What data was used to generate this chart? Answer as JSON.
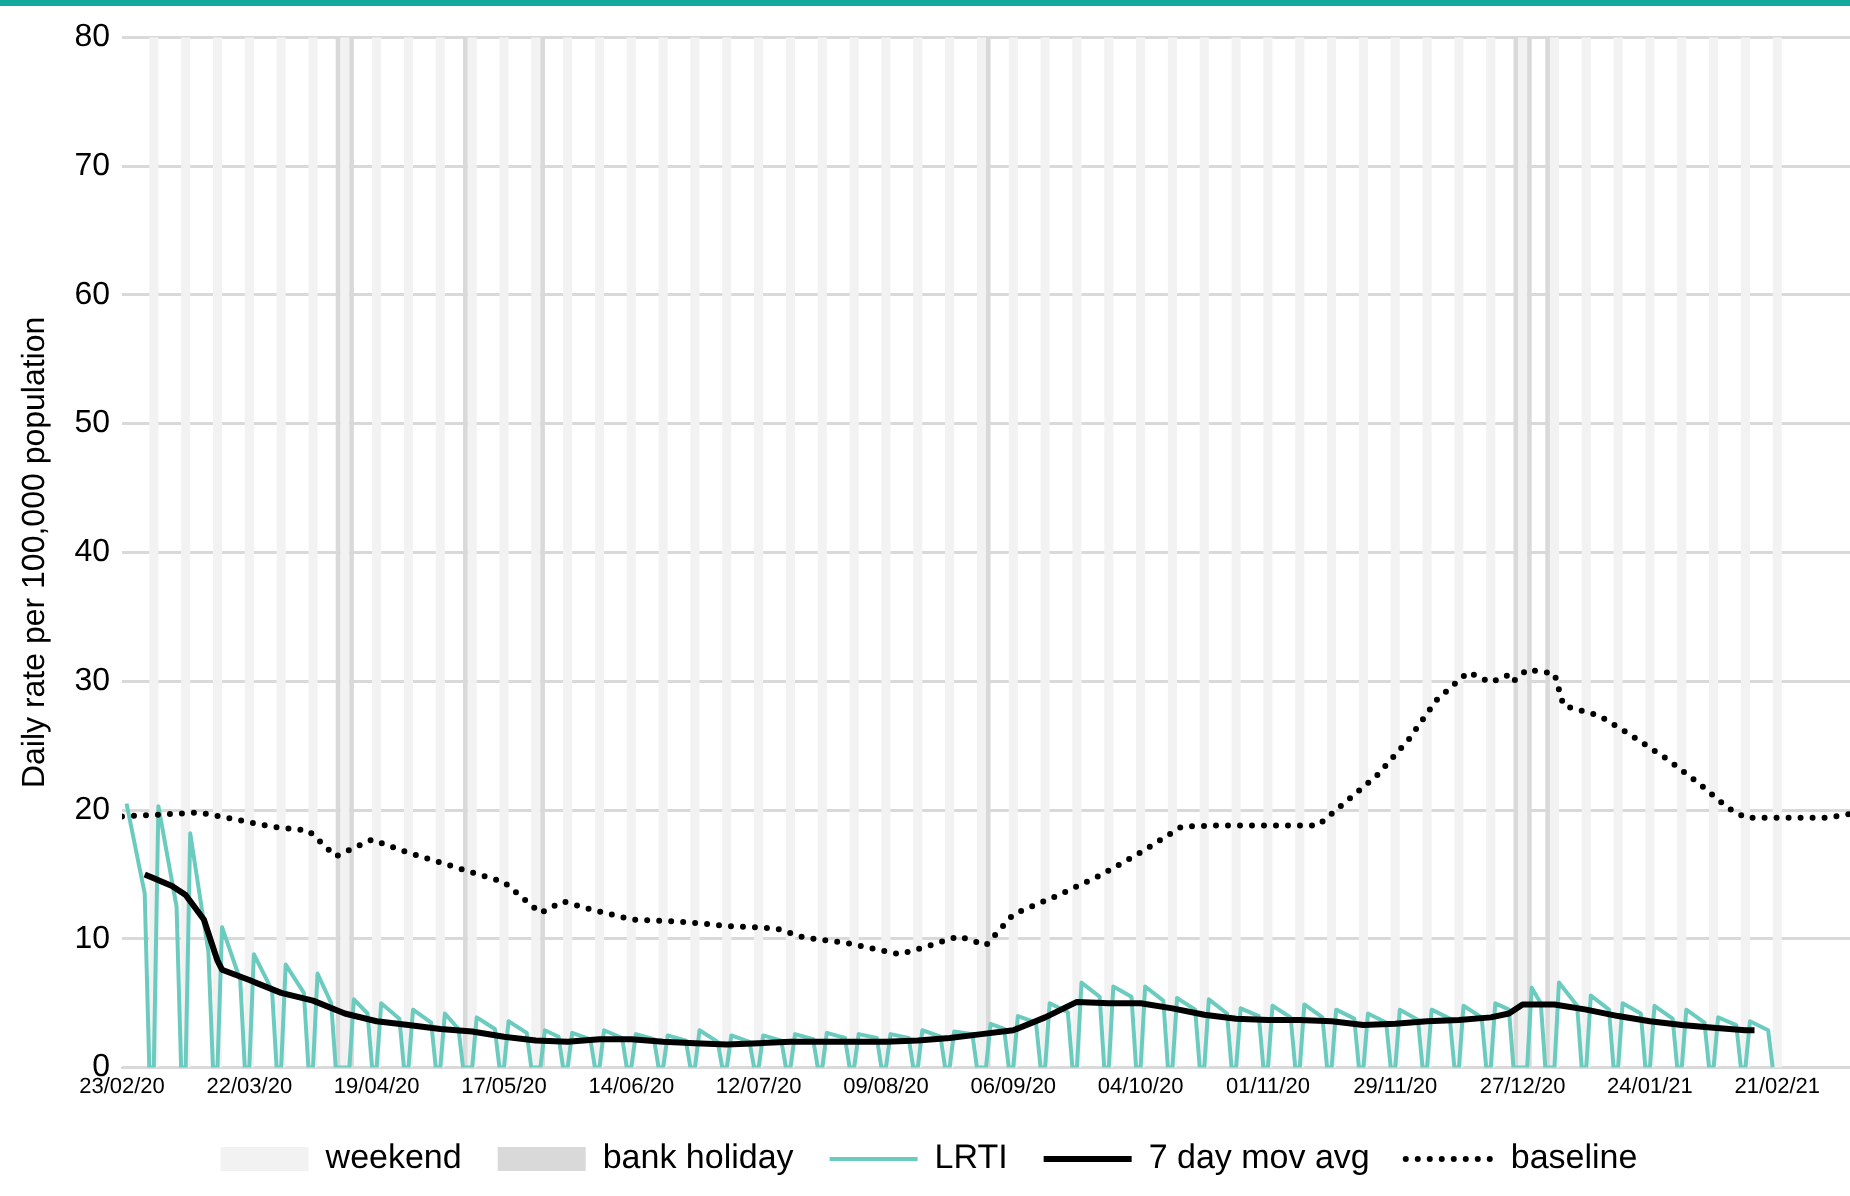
{
  "chart_data": {
    "type": "line",
    "ylabel": "Daily rate per 100,000 population",
    "xlim": [
      "2020-02-23",
      "2021-03-09"
    ],
    "xticks": [
      {
        "value": "2020-02-23",
        "label": "23/02/20"
      },
      {
        "value": "2020-03-22",
        "label": "22/03/20"
      },
      {
        "value": "2020-04-19",
        "label": "19/04/20"
      },
      {
        "value": "2020-05-17",
        "label": "17/05/20"
      },
      {
        "value": "2020-06-14",
        "label": "14/06/20"
      },
      {
        "value": "2020-07-12",
        "label": "12/07/20"
      },
      {
        "value": "2020-08-09",
        "label": "09/08/20"
      },
      {
        "value": "2020-09-06",
        "label": "06/09/20"
      },
      {
        "value": "2020-10-04",
        "label": "04/10/20"
      },
      {
        "value": "2020-11-01",
        "label": "01/11/20"
      },
      {
        "value": "2020-11-29",
        "label": "29/11/20"
      },
      {
        "value": "2020-12-27",
        "label": "27/12/20"
      },
      {
        "value": "2021-01-24",
        "label": "24/01/21"
      },
      {
        "value": "2021-02-21",
        "label": "21/02/21"
      }
    ],
    "ylim": [
      0,
      80
    ],
    "yticks": [
      0,
      10,
      20,
      30,
      40,
      50,
      60,
      70,
      80
    ],
    "grid": "y",
    "legend": "bottom",
    "marker": "none",
    "series": [
      {
        "name": "LRTI",
        "color": "#6ccbbf",
        "line_style": "solid",
        "x": [
          "2020-02-24",
          "2020-02-28",
          "2020-02-29",
          "2020-03-01",
          "2020-03-02",
          "2020-03-06",
          "2020-03-07",
          "2020-03-08",
          "2020-03-09",
          "2020-03-13",
          "2020-03-14",
          "2020-03-15",
          "2020-03-16",
          "2020-03-20",
          "2020-03-21",
          "2020-03-22",
          "2020-03-23",
          "2020-03-27",
          "2020-03-28",
          "2020-03-29",
          "2020-03-30",
          "2020-04-03",
          "2020-04-04",
          "2020-04-05",
          "2020-04-06",
          "2020-04-09",
          "2020-04-10",
          "2020-04-13",
          "2020-04-14",
          "2020-04-17",
          "2020-04-18",
          "2020-04-19",
          "2020-04-20",
          "2020-04-24",
          "2020-04-25",
          "2020-04-26",
          "2020-04-27",
          "2020-05-01",
          "2020-05-02",
          "2020-05-03",
          "2020-05-04",
          "2020-05-07",
          "2020-05-08",
          "2020-05-10",
          "2020-05-11",
          "2020-05-15",
          "2020-05-16",
          "2020-05-17",
          "2020-05-18",
          "2020-05-22",
          "2020-05-23",
          "2020-05-25",
          "2020-05-26",
          "2020-05-29",
          "2020-05-30",
          "2020-05-31",
          "2020-06-01",
          "2020-06-05",
          "2020-06-06",
          "2020-06-07",
          "2020-06-08",
          "2020-06-12",
          "2020-06-13",
          "2020-06-14",
          "2020-06-15",
          "2020-06-19",
          "2020-06-20",
          "2020-06-21",
          "2020-06-22",
          "2020-06-26",
          "2020-06-27",
          "2020-06-28",
          "2020-06-29",
          "2020-07-03",
          "2020-07-04",
          "2020-07-05",
          "2020-07-06",
          "2020-07-10",
          "2020-07-11",
          "2020-07-12",
          "2020-07-13",
          "2020-07-17",
          "2020-07-18",
          "2020-07-19",
          "2020-07-20",
          "2020-07-24",
          "2020-07-25",
          "2020-07-26",
          "2020-07-27",
          "2020-07-31",
          "2020-08-01",
          "2020-08-02",
          "2020-08-03",
          "2020-08-07",
          "2020-08-08",
          "2020-08-09",
          "2020-08-10",
          "2020-08-14",
          "2020-08-15",
          "2020-08-16",
          "2020-08-17",
          "2020-08-21",
          "2020-08-22",
          "2020-08-23",
          "2020-08-24",
          "2020-08-28",
          "2020-08-29",
          "2020-08-31",
          "2020-09-01",
          "2020-09-04",
          "2020-09-05",
          "2020-09-06",
          "2020-09-07",
          "2020-09-11",
          "2020-09-12",
          "2020-09-13",
          "2020-09-14",
          "2020-09-18",
          "2020-09-19",
          "2020-09-20",
          "2020-09-21",
          "2020-09-25",
          "2020-09-26",
          "2020-09-27",
          "2020-09-28",
          "2020-10-02",
          "2020-10-03",
          "2020-10-04",
          "2020-10-05",
          "2020-10-09",
          "2020-10-10",
          "2020-10-11",
          "2020-10-12",
          "2020-10-16",
          "2020-10-17",
          "2020-10-18",
          "2020-10-19",
          "2020-10-23",
          "2020-10-24",
          "2020-10-25",
          "2020-10-26",
          "2020-10-30",
          "2020-10-31",
          "2020-11-01",
          "2020-11-02",
          "2020-11-06",
          "2020-11-07",
          "2020-11-08",
          "2020-11-09",
          "2020-11-13",
          "2020-11-14",
          "2020-11-15",
          "2020-11-16",
          "2020-11-20",
          "2020-11-21",
          "2020-11-22",
          "2020-11-23",
          "2020-11-27",
          "2020-11-28",
          "2020-11-29",
          "2020-11-30",
          "2020-12-04",
          "2020-12-05",
          "2020-12-06",
          "2020-12-07",
          "2020-12-11",
          "2020-12-12",
          "2020-12-13",
          "2020-12-14",
          "2020-12-18",
          "2020-12-19",
          "2020-12-20",
          "2020-12-21",
          "2020-12-24",
          "2020-12-25",
          "2020-12-28",
          "2020-12-29",
          "2020-12-31",
          "2021-01-01",
          "2021-01-03",
          "2021-01-04",
          "2021-01-08",
          "2021-01-09",
          "2021-01-10",
          "2021-01-11",
          "2021-01-15",
          "2021-01-16",
          "2021-01-17",
          "2021-01-18",
          "2021-01-22",
          "2021-01-23",
          "2021-01-24",
          "2021-01-25",
          "2021-01-29",
          "2021-01-30",
          "2021-01-31",
          "2021-02-01",
          "2021-02-05",
          "2021-02-06",
          "2021-02-07",
          "2021-02-08",
          "2021-02-12",
          "2021-02-13",
          "2021-02-14",
          "2021-02-15",
          "2021-02-19",
          "2021-02-20"
        ],
        "values": [
          20.5,
          13.5,
          0,
          0,
          20.3,
          12.5,
          0,
          0,
          18.2,
          9,
          0,
          0,
          10.9,
          6.8,
          0,
          0,
          8.8,
          6.0,
          0,
          0,
          8.0,
          5.8,
          0,
          0,
          7.3,
          5.0,
          0,
          0,
          5.3,
          4.2,
          0,
          0,
          5.0,
          3.8,
          0,
          0,
          4.5,
          3.5,
          0,
          0,
          4.2,
          3.0,
          0,
          0,
          3.9,
          3.0,
          0,
          0,
          3.6,
          2.7,
          0,
          0,
          2.9,
          2.4,
          0,
          0,
          2.7,
          2.2,
          0,
          0,
          2.9,
          2.3,
          0,
          0,
          2.6,
          2.2,
          0,
          0,
          2.5,
          2.1,
          0,
          0,
          2.9,
          2.0,
          0,
          0,
          2.5,
          2.0,
          0,
          0,
          2.5,
          2.1,
          0,
          0,
          2.6,
          2.2,
          0,
          0,
          2.7,
          2.3,
          0,
          0,
          2.6,
          2.3,
          0,
          0,
          2.6,
          2.3,
          0,
          0,
          2.9,
          2.4,
          0,
          0,
          2.8,
          2.6,
          0,
          0,
          3.4,
          3.0,
          0,
          0,
          4.0,
          3.5,
          0,
          0,
          5.0,
          4.3,
          0,
          0,
          6.6,
          5.5,
          0,
          0,
          6.3,
          5.5,
          0,
          0,
          6.3,
          5.2,
          0,
          0,
          5.4,
          4.5,
          0,
          0,
          5.3,
          4.2,
          0,
          0,
          4.6,
          4.0,
          0,
          0,
          4.8,
          3.9,
          0,
          0,
          4.9,
          3.9,
          0,
          0,
          4.5,
          3.8,
          0,
          0,
          4.2,
          3.5,
          0,
          0,
          4.5,
          3.7,
          0,
          0,
          4.5,
          3.8,
          0,
          0,
          4.8,
          3.9,
          0,
          0,
          5.0,
          4.5,
          0,
          0,
          6.2,
          5.0,
          0,
          0,
          6.6,
          4.8,
          0,
          0,
          5.6,
          4.5,
          0,
          0,
          5.0,
          4.2,
          0,
          0,
          4.8,
          3.8,
          0,
          0,
          4.5,
          3.5,
          0,
          0,
          3.9,
          3.3,
          0,
          0,
          3.6,
          2.9,
          0
        ]
      },
      {
        "name": "7 day mov avg",
        "color": "#000000",
        "line_style": "solid",
        "x": [
          "2020-02-28",
          "2020-03-01",
          "2020-03-05",
          "2020-03-08",
          "2020-03-12",
          "2020-03-15",
          "2020-03-16",
          "2020-03-22",
          "2020-03-29",
          "2020-04-05",
          "2020-04-12",
          "2020-04-19",
          "2020-04-26",
          "2020-05-03",
          "2020-05-10",
          "2020-05-17",
          "2020-05-24",
          "2020-05-31",
          "2020-06-07",
          "2020-06-14",
          "2020-06-21",
          "2020-06-28",
          "2020-07-05",
          "2020-07-12",
          "2020-07-19",
          "2020-07-26",
          "2020-08-02",
          "2020-08-09",
          "2020-08-16",
          "2020-08-23",
          "2020-08-30",
          "2020-09-06",
          "2020-09-13",
          "2020-09-20",
          "2020-09-27",
          "2020-10-04",
          "2020-10-11",
          "2020-10-18",
          "2020-10-25",
          "2020-11-01",
          "2020-11-08",
          "2020-11-15",
          "2020-11-22",
          "2020-11-29",
          "2020-12-06",
          "2020-12-13",
          "2020-12-20",
          "2020-12-24",
          "2020-12-27",
          "2021-01-03",
          "2021-01-10",
          "2021-01-17",
          "2021-01-24",
          "2021-01-31",
          "2021-02-07",
          "2021-02-14",
          "2021-02-16"
        ],
        "values": [
          15.0,
          14.7,
          14.1,
          13.4,
          11.5,
          8.3,
          7.6,
          6.8,
          5.8,
          5.2,
          4.2,
          3.6,
          3.3,
          3.0,
          2.8,
          2.4,
          2.1,
          2.0,
          2.2,
          2.2,
          2.0,
          1.9,
          1.8,
          1.9,
          2.0,
          2.0,
          2.0,
          2.0,
          2.1,
          2.3,
          2.6,
          2.9,
          3.9,
          5.1,
          5.0,
          5.0,
          4.6,
          4.1,
          3.8,
          3.7,
          3.7,
          3.6,
          3.3,
          3.4,
          3.6,
          3.7,
          3.9,
          4.2,
          4.9,
          4.9,
          4.5,
          4.0,
          3.6,
          3.3,
          3.1,
          2.9,
          2.9
        ]
      },
      {
        "name": "baseline",
        "color": "#000000",
        "line_style": "dotted",
        "x": [
          "2020-02-23",
          "2020-03-11",
          "2020-03-17",
          "2020-03-27",
          "2020-04-04",
          "2020-04-10",
          "2020-04-18",
          "2020-04-25",
          "2020-05-05",
          "2020-05-17",
          "2020-05-25",
          "2020-05-30",
          "2020-06-05",
          "2020-06-14",
          "2020-06-26",
          "2020-07-05",
          "2020-07-16",
          "2020-07-22",
          "2020-07-31",
          "2020-08-12",
          "2020-08-18",
          "2020-08-25",
          "2020-08-31",
          "2020-09-06",
          "2020-09-16",
          "2020-09-25",
          "2020-10-04",
          "2020-10-13",
          "2020-10-21",
          "2020-11-12",
          "2020-11-16",
          "2020-11-25",
          "2020-12-02",
          "2020-12-08",
          "2020-12-15",
          "2020-12-20",
          "2020-12-24",
          "2020-12-25",
          "2020-12-28",
          "2021-01-03",
          "2021-01-05",
          "2021-01-13",
          "2021-01-19",
          "2021-01-28",
          "2021-02-04",
          "2021-02-10",
          "2021-02-14",
          "2021-03-04",
          "2021-03-09"
        ],
        "values": [
          19.5,
          19.8,
          19.4,
          18.7,
          18.4,
          16.4,
          17.7,
          16.8,
          15.7,
          14.4,
          12.0,
          12.9,
          12.3,
          11.5,
          11.3,
          11.0,
          10.8,
          10.1,
          9.7,
          8.8,
          9.4,
          10.2,
          9.5,
          11.9,
          13.4,
          14.9,
          16.7,
          18.7,
          18.8,
          18.8,
          20.0,
          22.7,
          25.5,
          28.5,
          30.7,
          29.9,
          30.5,
          30.0,
          30.9,
          30.6,
          28.1,
          27.3,
          26.0,
          23.9,
          22.0,
          20.2,
          19.4,
          19.4,
          19.7
        ]
      }
    ],
    "bands": [
      {
        "axis": "x",
        "from": "2020-02-29",
        "to": "2020-03-02",
        "label": "weekend",
        "color": "#f2f2f2"
      },
      {
        "axis": "x",
        "from": "2020-03-07",
        "to": "2020-03-09",
        "color": "#f2f2f2"
      },
      {
        "axis": "x",
        "from": "2020-03-14",
        "to": "2020-03-16",
        "color": "#f2f2f2"
      },
      {
        "axis": "x",
        "from": "2020-03-21",
        "to": "2020-03-23",
        "color": "#f2f2f2"
      },
      {
        "axis": "x",
        "from": "2020-03-28",
        "to": "2020-03-30",
        "color": "#f2f2f2"
      },
      {
        "axis": "x",
        "from": "2020-04-04",
        "to": "2020-04-06",
        "color": "#f2f2f2"
      },
      {
        "axis": "x",
        "from": "2020-04-11",
        "to": "2020-04-13",
        "color": "#f2f2f2"
      },
      {
        "axis": "x",
        "from": "2020-04-18",
        "to": "2020-04-20",
        "color": "#f2f2f2"
      },
      {
        "axis": "x",
        "from": "2020-04-25",
        "to": "2020-04-27",
        "color": "#f2f2f2"
      },
      {
        "axis": "x",
        "from": "2020-05-02",
        "to": "2020-05-04",
        "color": "#f2f2f2"
      },
      {
        "axis": "x",
        "from": "2020-05-09",
        "to": "2020-05-11",
        "color": "#f2f2f2"
      },
      {
        "axis": "x",
        "from": "2020-05-16",
        "to": "2020-05-18",
        "color": "#f2f2f2"
      },
      {
        "axis": "x",
        "from": "2020-05-23",
        "to": "2020-05-25",
        "color": "#f2f2f2"
      },
      {
        "axis": "x",
        "from": "2020-05-30",
        "to": "2020-06-01",
        "color": "#f2f2f2"
      },
      {
        "axis": "x",
        "from": "2020-06-06",
        "to": "2020-06-08",
        "color": "#f2f2f2"
      },
      {
        "axis": "x",
        "from": "2020-06-13",
        "to": "2020-06-15",
        "color": "#f2f2f2"
      },
      {
        "axis": "x",
        "from": "2020-06-20",
        "to": "2020-06-22",
        "color": "#f2f2f2"
      },
      {
        "axis": "x",
        "from": "2020-06-27",
        "to": "2020-06-29",
        "color": "#f2f2f2"
      },
      {
        "axis": "x",
        "from": "2020-07-04",
        "to": "2020-07-06",
        "color": "#f2f2f2"
      },
      {
        "axis": "x",
        "from": "2020-07-11",
        "to": "2020-07-13",
        "color": "#f2f2f2"
      },
      {
        "axis": "x",
        "from": "2020-07-18",
        "to": "2020-07-20",
        "color": "#f2f2f2"
      },
      {
        "axis": "x",
        "from": "2020-07-25",
        "to": "2020-07-27",
        "color": "#f2f2f2"
      },
      {
        "axis": "x",
        "from": "2020-08-01",
        "to": "2020-08-03",
        "color": "#f2f2f2"
      },
      {
        "axis": "x",
        "from": "2020-08-08",
        "to": "2020-08-10",
        "color": "#f2f2f2"
      },
      {
        "axis": "x",
        "from": "2020-08-15",
        "to": "2020-08-17",
        "color": "#f2f2f2"
      },
      {
        "axis": "x",
        "from": "2020-08-22",
        "to": "2020-08-24",
        "color": "#f2f2f2"
      },
      {
        "axis": "x",
        "from": "2020-08-29",
        "to": "2020-08-31",
        "color": "#f2f2f2"
      },
      {
        "axis": "x",
        "from": "2020-09-05",
        "to": "2020-09-07",
        "color": "#f2f2f2"
      },
      {
        "axis": "x",
        "from": "2020-09-12",
        "to": "2020-09-14",
        "color": "#f2f2f2"
      },
      {
        "axis": "x",
        "from": "2020-09-19",
        "to": "2020-09-21",
        "color": "#f2f2f2"
      },
      {
        "axis": "x",
        "from": "2020-09-26",
        "to": "2020-09-28",
        "color": "#f2f2f2"
      },
      {
        "axis": "x",
        "from": "2020-10-03",
        "to": "2020-10-05",
        "color": "#f2f2f2"
      },
      {
        "axis": "x",
        "from": "2020-10-10",
        "to": "2020-10-12",
        "color": "#f2f2f2"
      },
      {
        "axis": "x",
        "from": "2020-10-17",
        "to": "2020-10-19",
        "color": "#f2f2f2"
      },
      {
        "axis": "x",
        "from": "2020-10-24",
        "to": "2020-10-26",
        "color": "#f2f2f2"
      },
      {
        "axis": "x",
        "from": "2020-10-31",
        "to": "2020-11-02",
        "color": "#f2f2f2"
      },
      {
        "axis": "x",
        "from": "2020-11-07",
        "to": "2020-11-09",
        "color": "#f2f2f2"
      },
      {
        "axis": "x",
        "from": "2020-11-14",
        "to": "2020-11-16",
        "color": "#f2f2f2"
      },
      {
        "axis": "x",
        "from": "2020-11-21",
        "to": "2020-11-23",
        "color": "#f2f2f2"
      },
      {
        "axis": "x",
        "from": "2020-11-28",
        "to": "2020-11-30",
        "color": "#f2f2f2"
      },
      {
        "axis": "x",
        "from": "2020-12-05",
        "to": "2020-12-07",
        "color": "#f2f2f2"
      },
      {
        "axis": "x",
        "from": "2020-12-12",
        "to": "2020-12-14",
        "color": "#f2f2f2"
      },
      {
        "axis": "x",
        "from": "2020-12-19",
        "to": "2020-12-21",
        "color": "#f2f2f2"
      },
      {
        "axis": "x",
        "from": "2020-12-26",
        "to": "2020-12-28",
        "color": "#f2f2f2"
      },
      {
        "axis": "x",
        "from": "2021-01-02",
        "to": "2021-01-04",
        "color": "#f2f2f2"
      },
      {
        "axis": "x",
        "from": "2021-01-09",
        "to": "2021-01-11",
        "color": "#f2f2f2"
      },
      {
        "axis": "x",
        "from": "2021-01-16",
        "to": "2021-01-18",
        "color": "#f2f2f2"
      },
      {
        "axis": "x",
        "from": "2021-01-23",
        "to": "2021-01-25",
        "color": "#f2f2f2"
      },
      {
        "axis": "x",
        "from": "2021-01-30",
        "to": "2021-02-01",
        "color": "#f2f2f2"
      },
      {
        "axis": "x",
        "from": "2021-02-06",
        "to": "2021-02-08",
        "color": "#f2f2f2"
      },
      {
        "axis": "x",
        "from": "2021-02-13",
        "to": "2021-02-15",
        "color": "#f2f2f2"
      },
      {
        "axis": "x",
        "from": "2021-02-20",
        "to": "2021-02-22",
        "color": "#f2f2f2"
      },
      {
        "axis": "x",
        "from": "2020-04-10",
        "to": "2020-04-11",
        "label": "bank holiday",
        "color": "#d9d9d9"
      },
      {
        "axis": "x",
        "from": "2020-04-13",
        "to": "2020-04-14",
        "color": "#d9d9d9"
      },
      {
        "axis": "x",
        "from": "2020-05-08",
        "to": "2020-05-09",
        "color": "#d9d9d9"
      },
      {
        "axis": "x",
        "from": "2020-05-25",
        "to": "2020-05-26",
        "color": "#d9d9d9"
      },
      {
        "axis": "x",
        "from": "2020-08-31",
        "to": "2020-09-01",
        "color": "#d9d9d9"
      },
      {
        "axis": "x",
        "from": "2020-12-25",
        "to": "2020-12-26",
        "color": "#d9d9d9"
      },
      {
        "axis": "x",
        "from": "2020-12-28",
        "to": "2020-12-29",
        "color": "#d9d9d9"
      },
      {
        "axis": "x",
        "from": "2021-01-01",
        "to": "2021-01-02",
        "color": "#d9d9d9"
      }
    ]
  }
}
